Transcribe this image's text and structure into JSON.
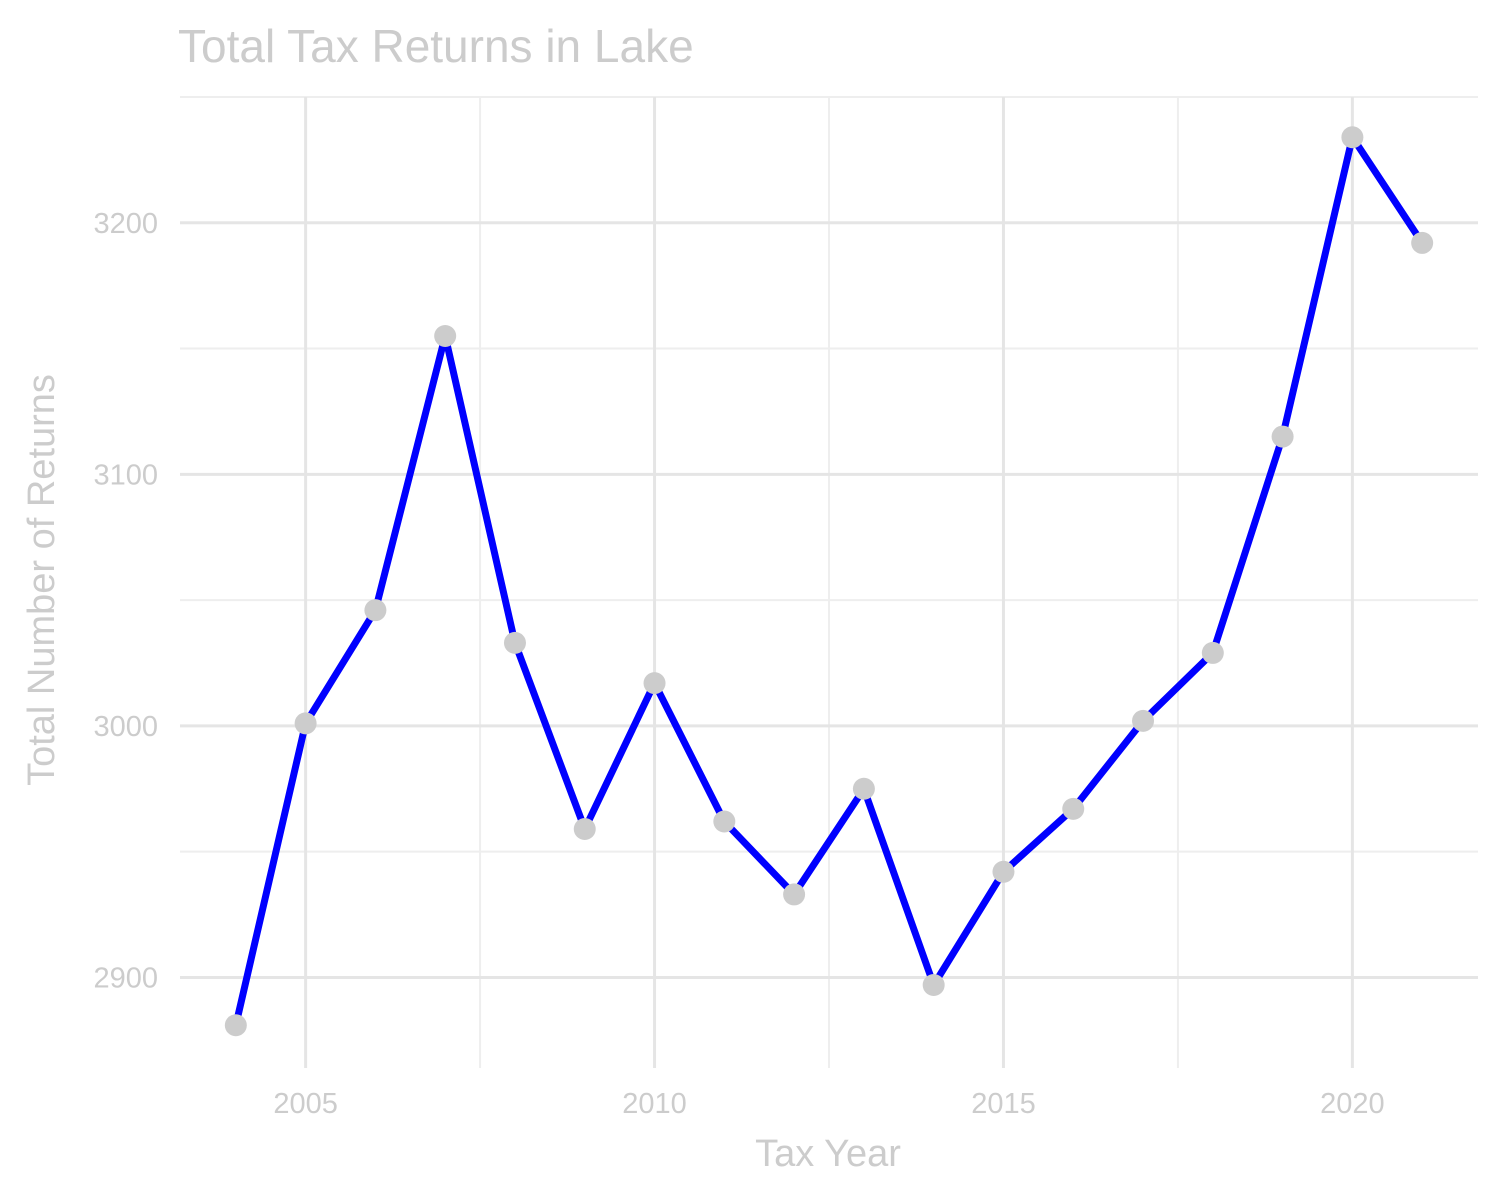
{
  "chart_data": {
    "type": "line",
    "title": "Total Tax Returns in Lake",
    "xlabel": "Tax Year",
    "ylabel": "Total Number of Returns",
    "x": [
      2004,
      2005,
      2006,
      2007,
      2008,
      2009,
      2010,
      2011,
      2012,
      2013,
      2014,
      2015,
      2016,
      2017,
      2018,
      2019,
      2020,
      2021
    ],
    "series": [
      {
        "values": [
          2881,
          3001,
          3046,
          3155,
          3033,
          2959,
          3017,
          2962,
          2933,
          2975,
          2897,
          2942,
          2967,
          3002,
          3029,
          3115,
          3234,
          3192
        ]
      }
    ],
    "xlim": [
      2003.2,
      2021.8
    ],
    "ylim": [
      2864,
      3250
    ],
    "x_ticks": [
      2005,
      2010,
      2015,
      2020
    ],
    "x_tick_labels": [
      "2005",
      "2010",
      "2015",
      "2020"
    ],
    "y_ticks": [
      2900,
      3000,
      3100,
      3200
    ],
    "y_tick_labels": [
      "2900",
      "3000",
      "3100",
      "3200"
    ],
    "grid": true,
    "legend": "none",
    "colors": {
      "line": "#0000ff",
      "point": "#cccccc",
      "grid": "#e5e5e5",
      "text": "#cccccc"
    }
  }
}
